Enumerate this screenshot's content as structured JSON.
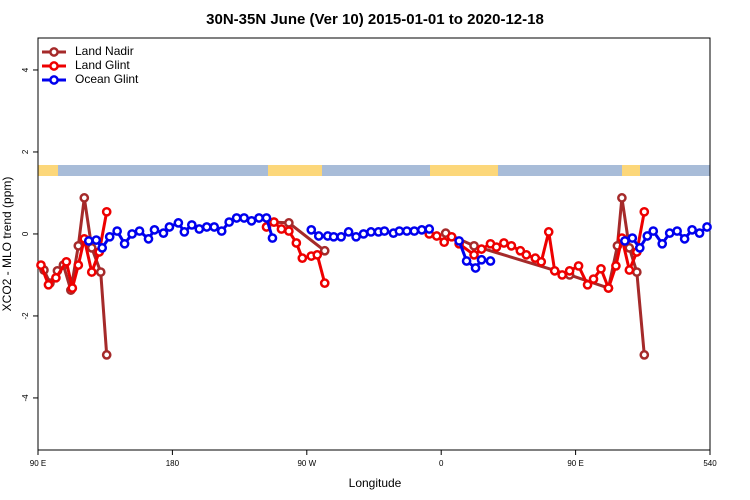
{
  "chart_data": {
    "type": "line",
    "title": "30N-35N June (Ver 10)   2015-01-01 to 2020-12-18",
    "xlabel": "Longitude",
    "ylabel": "XCO2 - MLO trend (ppm)",
    "xlim": [
      90,
      540
    ],
    "ylim": [
      -5.27,
      4.78
    ],
    "xticks": [
      {
        "value": 90,
        "label": "90 E"
      },
      180,
      {
        "value": 270,
        "label": "90 W"
      },
      {
        "value": 360,
        "label": "0"
      },
      {
        "value": 450,
        "label": "90 E"
      },
      540
    ],
    "yticks": [
      -4,
      -2,
      0,
      2,
      4
    ],
    "legend": "top-left",
    "series": [
      {
        "name": "Land Nadir",
        "color": "#a52a2a",
        "x": [
          94,
          98,
          103,
          107,
          112,
          117,
          121,
          126,
          132,
          136,
          200,
          248,
          258,
          282,
          320,
          363,
          382,
          446,
          472,
          478,
          481,
          486,
          491,
          496
        ],
        "values": [
          -0.88,
          -1.2,
          -0.9,
          -0.76,
          -1.37,
          -0.29,
          0.88,
          -0.34,
          -0.93,
          -2.95,
          null,
          0.29,
          0.27,
          -0.41,
          null,
          0.02,
          -0.29,
          -1.0,
          -1.32,
          -0.29,
          0.88,
          -0.34,
          -0.93,
          -2.95
        ]
      },
      {
        "name": "Land Glint",
        "color": "#ee0000",
        "x": [
          92,
          97,
          102,
          109,
          113,
          117,
          121,
          126,
          131,
          136,
          200,
          243,
          248,
          253,
          258,
          263,
          267,
          273,
          277,
          282,
          320,
          352,
          357,
          362,
          367,
          372,
          382,
          387,
          393,
          397,
          402,
          407,
          413,
          417,
          423,
          427,
          432,
          436,
          441,
          446,
          452,
          458,
          462,
          467,
          472,
          477,
          481,
          486,
          491,
          496
        ],
        "values": [
          -0.76,
          -1.24,
          -1.07,
          -0.68,
          -1.32,
          -0.76,
          -0.12,
          -0.93,
          -0.44,
          0.54,
          null,
          0.17,
          0.29,
          0.12,
          0.07,
          -0.22,
          -0.59,
          -0.54,
          -0.51,
          -1.2,
          null,
          0,
          -0.05,
          -0.2,
          -0.07,
          -0.24,
          -0.51,
          -0.37,
          -0.24,
          -0.32,
          -0.22,
          -0.29,
          -0.41,
          -0.51,
          -0.59,
          -0.68,
          0.05,
          -0.9,
          -1.0,
          -0.9,
          -0.78,
          -1.24,
          -1.1,
          -0.85,
          -1.32,
          -0.78,
          -0.1,
          -0.88,
          -0.44,
          0.54
        ]
      },
      {
        "name": "Ocean Glint",
        "color": "#0000ee",
        "x": [
          124,
          129,
          133,
          138,
          143,
          148,
          153,
          158,
          164,
          168,
          174,
          178,
          184,
          188,
          193,
          198,
          203,
          208,
          213,
          218,
          223,
          228,
          233,
          238,
          243,
          247,
          260,
          273,
          278,
          284,
          288,
          293,
          298,
          303,
          308,
          313,
          318,
          322,
          328,
          332,
          337,
          342,
          347,
          352,
          362,
          372,
          377,
          383,
          387,
          393,
          440,
          483,
          488,
          493,
          498,
          502,
          508,
          513,
          518,
          523,
          528,
          533,
          538
        ],
        "values": [
          -0.17,
          -0.15,
          -0.34,
          -0.07,
          0.07,
          -0.24,
          0,
          0.07,
          -0.12,
          0.1,
          0.02,
          0.17,
          0.27,
          0.05,
          0.22,
          0.12,
          0.17,
          0.17,
          0.07,
          0.29,
          0.39,
          0.39,
          0.32,
          0.39,
          0.39,
          -0.1,
          null,
          0.1,
          -0.05,
          -0.05,
          -0.07,
          -0.07,
          0.05,
          -0.07,
          0,
          0.05,
          0.05,
          0.07,
          0.02,
          0.07,
          0.07,
          0.07,
          0.1,
          0.12,
          null,
          -0.17,
          -0.66,
          -0.83,
          -0.63,
          -0.66,
          null,
          -0.17,
          -0.1,
          -0.34,
          -0.05,
          0.07,
          -0.24,
          0.02,
          0.07,
          -0.12,
          0.1,
          0.02,
          0.17
        ]
      }
    ]
  }
}
